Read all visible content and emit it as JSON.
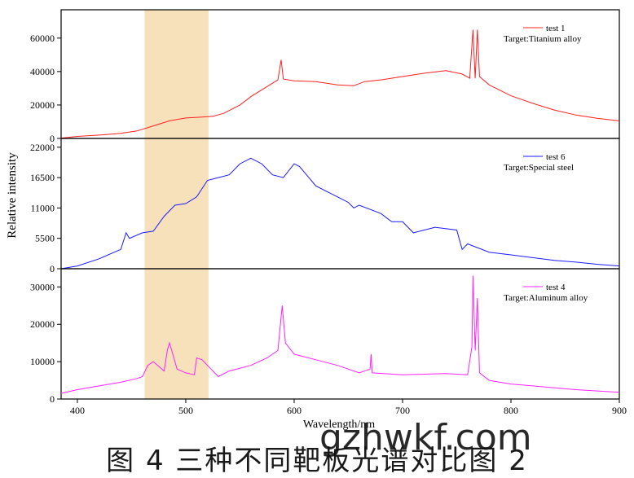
{
  "figure": {
    "caption": "图 4  三种不同靶板光谱对比图 2",
    "watermark": "gzhwkf.com"
  },
  "chart_data": {
    "type": "line",
    "xlabel": "Wavelength/nm",
    "ylabel": "Relative intensity",
    "xlim": [
      385,
      900
    ],
    "x_ticks": [
      400,
      500,
      600,
      700,
      800,
      900
    ],
    "highlight_band": {
      "x_range": [
        462,
        521
      ],
      "color": "#f5deb3"
    },
    "panels": [
      {
        "name": "test 1",
        "annotation": "Target:Titanium alloy",
        "color": "#ff2020",
        "ylim": [
          0,
          75000
        ],
        "y_ticks": [
          0,
          20000,
          40000,
          60000
        ],
        "points": [
          [
            385,
            200
          ],
          [
            400,
            1200
          ],
          [
            420,
            2000
          ],
          [
            440,
            3000
          ],
          [
            455,
            4500
          ],
          [
            470,
            7500
          ],
          [
            485,
            10500
          ],
          [
            500,
            12200
          ],
          [
            515,
            12800
          ],
          [
            525,
            13200
          ],
          [
            535,
            15000
          ],
          [
            550,
            20000
          ],
          [
            560,
            25000
          ],
          [
            575,
            31000
          ],
          [
            585,
            35000
          ],
          [
            588,
            47000
          ],
          [
            590,
            35500
          ],
          [
            600,
            34500
          ],
          [
            620,
            34000
          ],
          [
            640,
            32000
          ],
          [
            655,
            31500
          ],
          [
            665,
            34000
          ],
          [
            680,
            35000
          ],
          [
            700,
            37000
          ],
          [
            720,
            39000
          ],
          [
            740,
            40500
          ],
          [
            755,
            38500
          ],
          [
            762,
            36000
          ],
          [
            765,
            65000
          ],
          [
            767,
            36000
          ],
          [
            769,
            65000
          ],
          [
            771,
            37000
          ],
          [
            780,
            32000
          ],
          [
            800,
            25500
          ],
          [
            820,
            21000
          ],
          [
            840,
            17000
          ],
          [
            860,
            14000
          ],
          [
            880,
            12000
          ],
          [
            900,
            10500
          ]
        ],
        "peaks": [
          {
            "x": 589,
            "y": 47000
          },
          {
            "x": 766,
            "y": 65000
          },
          {
            "x": 769,
            "y": 65000
          }
        ]
      },
      {
        "name": "test 6",
        "annotation": "Target:Special steel",
        "color": "#1a1aff",
        "ylim": [
          0,
          23000
        ],
        "y_ticks": [
          0,
          5500,
          11000,
          16500,
          22000
        ],
        "points": [
          [
            385,
            0
          ],
          [
            400,
            500
          ],
          [
            420,
            1800
          ],
          [
            440,
            3500
          ],
          [
            445,
            6500
          ],
          [
            448,
            5500
          ],
          [
            460,
            6500
          ],
          [
            470,
            6800
          ],
          [
            480,
            9500
          ],
          [
            490,
            11500
          ],
          [
            500,
            11800
          ],
          [
            510,
            13000
          ],
          [
            520,
            16000
          ],
          [
            530,
            16500
          ],
          [
            540,
            17000
          ],
          [
            550,
            19000
          ],
          [
            560,
            20000
          ],
          [
            570,
            19000
          ],
          [
            580,
            17000
          ],
          [
            590,
            16500
          ],
          [
            600,
            19000
          ],
          [
            605,
            18500
          ],
          [
            620,
            15000
          ],
          [
            640,
            13000
          ],
          [
            650,
            12000
          ],
          [
            655,
            11000
          ],
          [
            660,
            11500
          ],
          [
            680,
            10000
          ],
          [
            690,
            8500
          ],
          [
            700,
            8500
          ],
          [
            710,
            6500
          ],
          [
            720,
            7000
          ],
          [
            730,
            7500
          ],
          [
            750,
            7000
          ],
          [
            755,
            3500
          ],
          [
            760,
            4500
          ],
          [
            780,
            3000
          ],
          [
            800,
            2500
          ],
          [
            820,
            2000
          ],
          [
            840,
            1500
          ],
          [
            860,
            1200
          ],
          [
            880,
            800
          ],
          [
            900,
            500
          ]
        ],
        "peaks": [
          {
            "x": 445,
            "y": 6500
          }
        ]
      },
      {
        "name": "test 4",
        "annotation": "Target:Aluminum alloy",
        "color": "#ff20ff",
        "ylim": [
          0,
          34000
        ],
        "y_ticks": [
          0,
          10000,
          20000,
          30000
        ],
        "points": [
          [
            385,
            1500
          ],
          [
            400,
            2500
          ],
          [
            420,
            3500
          ],
          [
            440,
            4500
          ],
          [
            455,
            5500
          ],
          [
            460,
            6000
          ],
          [
            465,
            9000
          ],
          [
            470,
            10000
          ],
          [
            480,
            7500
          ],
          [
            483,
            13000
          ],
          [
            485,
            15000
          ],
          [
            488,
            12000
          ],
          [
            492,
            8000
          ],
          [
            500,
            7000
          ],
          [
            508,
            6500
          ],
          [
            510,
            11000
          ],
          [
            515,
            10500
          ],
          [
            520,
            9000
          ],
          [
            530,
            6000
          ],
          [
            540,
            7500
          ],
          [
            560,
            9000
          ],
          [
            575,
            11000
          ],
          [
            585,
            13000
          ],
          [
            589,
            25000
          ],
          [
            592,
            15000
          ],
          [
            600,
            12000
          ],
          [
            620,
            10500
          ],
          [
            640,
            9000
          ],
          [
            660,
            7000
          ],
          [
            670,
            8000
          ],
          [
            671,
            12000
          ],
          [
            672,
            7000
          ],
          [
            700,
            6500
          ],
          [
            740,
            6800
          ],
          [
            760,
            6500
          ],
          [
            764,
            14000
          ],
          [
            765,
            33000
          ],
          [
            767,
            13000
          ],
          [
            769,
            27000
          ],
          [
            771,
            7000
          ],
          [
            780,
            5000
          ],
          [
            800,
            4000
          ],
          [
            820,
            3500
          ],
          [
            840,
            3000
          ],
          [
            860,
            2500
          ],
          [
            900,
            1800
          ]
        ],
        "peaks": [
          {
            "x": 589,
            "y": 25000
          },
          {
            "x": 671,
            "y": 12000
          },
          {
            "x": 765,
            "y": 33000
          },
          {
            "x": 769,
            "y": 27000
          }
        ]
      }
    ]
  }
}
